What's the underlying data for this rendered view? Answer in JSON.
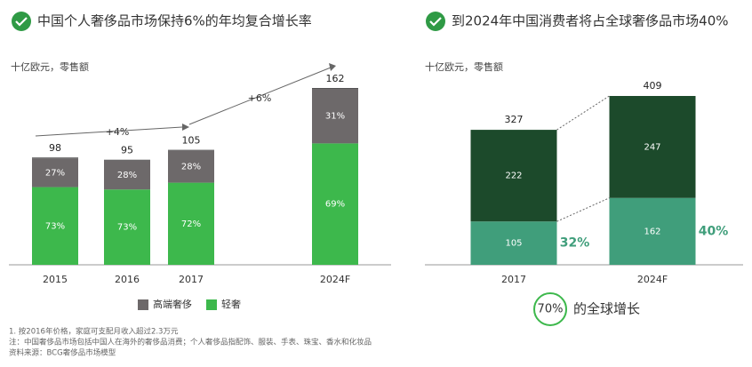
{
  "chart_data": [
    {
      "type": "bar",
      "stacking": "percent",
      "title": "中国个人奢侈品市场保持6%的年均复合增长率",
      "unit_label": "十亿欧元，零售额",
      "categories": [
        "2015",
        "2016",
        "2017",
        "2024F"
      ],
      "totals": [
        98,
        95,
        105,
        162
      ],
      "series": [
        {
          "name": "高端奢侈",
          "color": "#6d696a",
          "values": [
            27,
            28,
            28,
            31
          ],
          "value_labels": [
            "27%",
            "28%",
            "28%",
            "31%"
          ]
        },
        {
          "name": "轻奢",
          "color": "#3db84c",
          "values": [
            73,
            73,
            72,
            69
          ],
          "value_labels": [
            "73%",
            "73%",
            "72%",
            "69%"
          ]
        }
      ],
      "annotations": [
        "+4%",
        "+6%"
      ]
    },
    {
      "type": "bar",
      "stacking": "absolute",
      "title": "到2024年中国消费者将占全球奢侈品市场40%",
      "unit_label": "十亿欧元，零售额",
      "categories": [
        "2017",
        "2024F"
      ],
      "totals": [
        327,
        409
      ],
      "series": [
        {
          "color": "#1c4a2b",
          "values": [
            222,
            247
          ]
        },
        {
          "color": "#409e7b",
          "values": [
            105,
            162
          ]
        }
      ],
      "share_labels": [
        {
          "value": 32,
          "label": "32%"
        },
        {
          "value": 40,
          "label": "40%"
        }
      ],
      "global_growth": {
        "value": 70,
        "label": "70%"
      },
      "global_growth_text": "的全球增长"
    }
  ],
  "footnotes": [
    "1. 按2016年价格，家庭可支配月收入超过2.3万元",
    "注：中国奢侈品市场包括中国人在海外的奢侈品消费；个人奢侈品指配饰、服装、手表、珠宝、香水和化妆品",
    "资料来源：BCG奢侈品市场模型"
  ]
}
